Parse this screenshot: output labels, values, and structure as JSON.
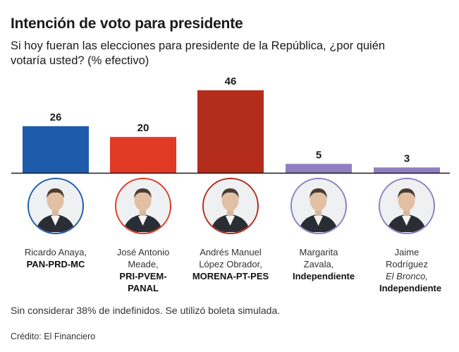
{
  "header": {
    "title": "Intención de voto para presidente",
    "subtitle": "Si hoy fueran las elecciones para presidente de la República, ¿por quién votaría usted? (% efectivo)"
  },
  "chart_data": {
    "type": "bar",
    "title": "Intención de voto para presidente",
    "subtitle": "Si hoy fueran las elecciones para presidente de la República, ¿por quién votaría usted? (% efectivo)",
    "categories": [
      "Ricardo Anaya",
      "José Antonio Meade",
      "Andrés Manuel López Obrador",
      "Margarita Zavala",
      "Jaime Rodríguez"
    ],
    "values": [
      26,
      20,
      46,
      5,
      3
    ],
    "colors": [
      "#1f5bab",
      "#e03a25",
      "#b42c1b",
      "#8f7fc0",
      "#8f7fc0"
    ],
    "xlabel": "",
    "ylabel": "% efectivo",
    "ylim": [
      0,
      46
    ],
    "grid": false,
    "legend": "none"
  },
  "candidates": [
    {
      "name": "Ricardo Anaya,",
      "nickname": "",
      "party": "PAN-PRD-MC",
      "ring_color": "#1f5bab",
      "portrait_icon": "candidate-portrait"
    },
    {
      "name": "José Antonio Meade,",
      "nickname": "",
      "party": "PRI-PVEM-PANAL",
      "ring_color": "#e03a25",
      "portrait_icon": "candidate-portrait"
    },
    {
      "name": "Andrés Manuel López Obrador,",
      "nickname": "",
      "party": "MORENA-PT-PES",
      "ring_color": "#b42c1b",
      "portrait_icon": "candidate-portrait"
    },
    {
      "name": "Margarita Zavala,",
      "nickname": "",
      "party": "Independiente",
      "ring_color": "#8f7fc0",
      "portrait_icon": "candidate-portrait"
    },
    {
      "name": "Jaime Rodríguez",
      "nickname": "El Bronco,",
      "party": "Independiente",
      "ring_color": "#8f7fc0",
      "portrait_icon": "candidate-portrait"
    }
  ],
  "footer": {
    "note": "Sin considerar 38% de indefinidos. Se utilizó boleta simulada.",
    "credit": "Crédito: El Financiero"
  }
}
